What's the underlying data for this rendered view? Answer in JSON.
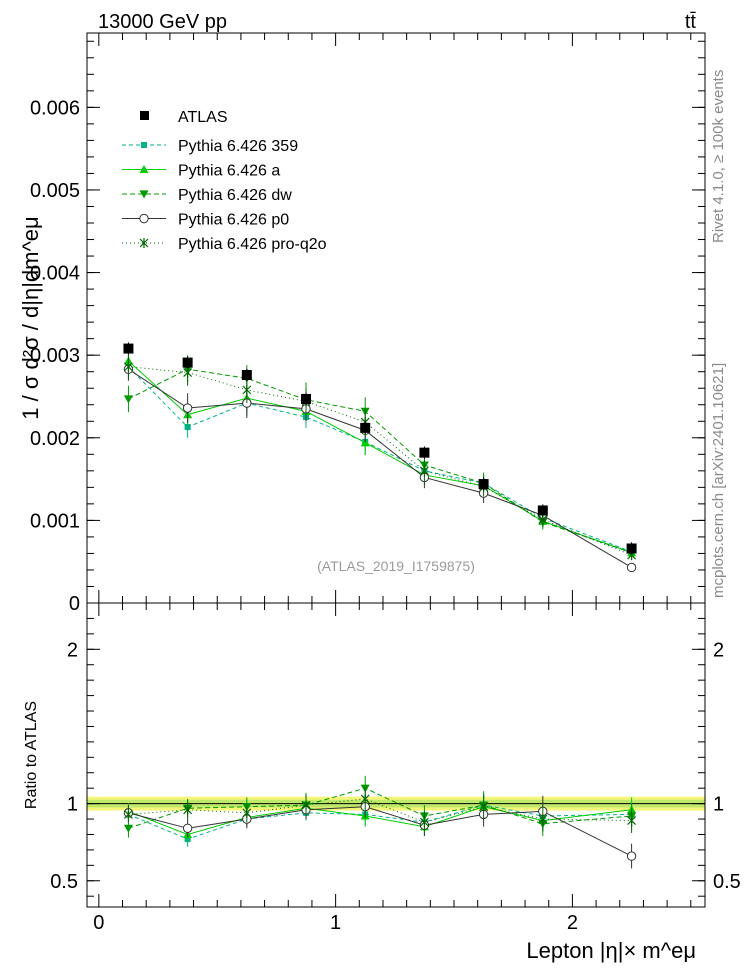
{
  "header": {
    "energy_label": "13000 GeV pp",
    "process_label": "tt̄"
  },
  "side_labels": {
    "rivet": "Rivet 4.1.0, ≥ 100k events",
    "mcplots": "mcplots.cern.ch [arXiv:2401.10621]"
  },
  "watermark": "(ATLAS_2019_I1759875)",
  "colors": {
    "data": "#000000",
    "p359": "#00b28a",
    "pa": "#00cc00",
    "pdw": "#009900",
    "pp0": "#333333",
    "pq2o": "#006600",
    "band_outer": "#f5f57a",
    "band_inner": "#bde86a"
  },
  "chart_data": [
    {
      "panel": "main",
      "type": "scatter",
      "ylabel": "1 / σ  d²σ / d|η|dm^eμ",
      "ylim": [
        0,
        0.0069
      ],
      "xlim": [
        -0.05,
        2.56
      ],
      "yticks": [
        {
          "value": 0,
          "label": "0"
        },
        {
          "value": 0.001,
          "label": "0.001"
        },
        {
          "value": 0.002,
          "label": "0.002"
        },
        {
          "value": 0.003,
          "label": "0.003"
        },
        {
          "value": 0.004,
          "label": "0.004"
        },
        {
          "value": 0.005,
          "label": "0.005"
        },
        {
          "value": 0.006,
          "label": "0.006"
        }
      ],
      "x": [
        0.125,
        0.375,
        0.625,
        0.875,
        1.125,
        1.375,
        1.625,
        1.875,
        2.25
      ],
      "data": {
        "name": "ATLAS",
        "values": [
          0.00308,
          0.00291,
          0.00276,
          0.00247,
          0.00212,
          0.00182,
          0.00144,
          0.00112,
          0.00066
        ],
        "band": 7.5e-05
      },
      "series": [
        {
          "key": "p359",
          "name": "Pythia 6.426 359",
          "marker": "square",
          "dash": "4,3",
          "values": [
            0.00286,
            0.00213,
            0.00242,
            0.00225,
            0.00195,
            0.0016,
            0.00145,
            0.00103,
            0.00062
          ],
          "errors": [
            0.00014,
            0.00013,
            0.00015,
            0.00013,
            0.00015,
            0.00012,
            0.00011,
            8e-05,
            5e-05
          ]
        },
        {
          "key": "pa",
          "name": "Pythia 6.426 a",
          "marker": "triangle-up",
          "dash": "",
          "values": [
            0.00293,
            0.00228,
            0.00248,
            0.00232,
            0.00194,
            0.00155,
            0.00142,
            0.00099,
            0.00061
          ],
          "errors": [
            0.00014,
            0.00013,
            0.00015,
            0.00013,
            0.00015,
            0.00012,
            0.00011,
            8e-05,
            5e-05
          ]
        },
        {
          "key": "pdw",
          "name": "Pythia 6.426 dw",
          "marker": "triangle-down",
          "dash": "5,3",
          "values": [
            0.00247,
            0.00283,
            0.00272,
            0.00246,
            0.00232,
            0.00167,
            0.00145,
            0.00098,
            0.00061
          ],
          "errors": [
            0.00016,
            0.00017,
            0.00016,
            0.00021,
            0.00017,
            0.00013,
            0.00013,
            9e-05,
            5e-05
          ]
        },
        {
          "key": "pp0",
          "name": "Pythia 6.426 p0",
          "marker": "open-circle",
          "dash": "",
          "values": [
            0.00283,
            0.00236,
            0.00242,
            0.00235,
            0.00209,
            0.00152,
            0.00133,
            0.00106,
            0.00043
          ],
          "errors": [
            0.00014,
            0.00018,
            0.00018,
            0.00015,
            0.00014,
            0.00013,
            0.00012,
            9e-05,
            4e-05
          ]
        },
        {
          "key": "pq2o",
          "name": "Pythia 6.426 pro-q2o",
          "marker": "star",
          "dash": "1,3",
          "values": [
            0.00286,
            0.00279,
            0.00258,
            0.00244,
            0.00219,
            0.0016,
            0.00141,
            0.00101,
            0.00058
          ],
          "errors": [
            0.00014,
            0.00016,
            0.00016,
            0.00016,
            0.00016,
            0.00013,
            0.00012,
            9e-05,
            5e-05
          ]
        }
      ]
    },
    {
      "panel": "ratio",
      "type": "scatter",
      "ylabel": "Ratio to ATLAS",
      "xlabel": "Lepton |η|× m^eμ",
      "ylim": [
        0.33,
        2.3
      ],
      "xlim": [
        -0.05,
        2.56
      ],
      "xticks": [
        {
          "value": 0,
          "label": "0"
        },
        {
          "value": 1,
          "label": "1"
        },
        {
          "value": 2,
          "label": "2"
        }
      ],
      "yticks": [
        {
          "value": 0.5,
          "label": "0.5"
        },
        {
          "value": 1,
          "label": "1"
        },
        {
          "value": 2,
          "label": "2"
        }
      ],
      "band_inner": 0.025,
      "band_outer": 0.045,
      "x": [
        0.125,
        0.375,
        0.625,
        0.875,
        1.125,
        1.375,
        1.625,
        1.875,
        2.25
      ],
      "series": [
        {
          "key": "p359",
          "values": [
            0.93,
            0.77,
            0.9,
            0.94,
            0.93,
            0.88,
            0.99,
            0.92,
            0.93
          ],
          "errors": [
            0.05,
            0.05,
            0.05,
            0.05,
            0.07,
            0.06,
            0.07,
            0.07,
            0.08
          ]
        },
        {
          "key": "pa",
          "values": [
            0.95,
            0.8,
            0.91,
            0.97,
            0.92,
            0.85,
            0.98,
            0.89,
            0.96
          ],
          "errors": [
            0.05,
            0.05,
            0.05,
            0.05,
            0.07,
            0.06,
            0.07,
            0.07,
            0.08
          ]
        },
        {
          "key": "pdw",
          "values": [
            0.84,
            0.97,
            0.98,
            0.99,
            1.1,
            0.92,
            0.99,
            0.87,
            0.92
          ],
          "errors": [
            0.06,
            0.06,
            0.06,
            0.08,
            0.08,
            0.07,
            0.09,
            0.08,
            0.08
          ]
        },
        {
          "key": "pp0",
          "values": [
            0.94,
            0.84,
            0.9,
            0.96,
            0.98,
            0.86,
            0.93,
            0.95,
            0.66
          ],
          "errors": [
            0.05,
            0.06,
            0.06,
            0.06,
            0.07,
            0.07,
            0.08,
            0.1,
            0.08
          ]
        },
        {
          "key": "pq2o",
          "values": [
            0.93,
            0.96,
            0.94,
            0.99,
            1.03,
            0.88,
            0.98,
            0.9,
            0.89
          ],
          "errors": [
            0.05,
            0.06,
            0.06,
            0.07,
            0.08,
            0.07,
            0.08,
            0.08,
            0.08
          ]
        }
      ]
    }
  ]
}
